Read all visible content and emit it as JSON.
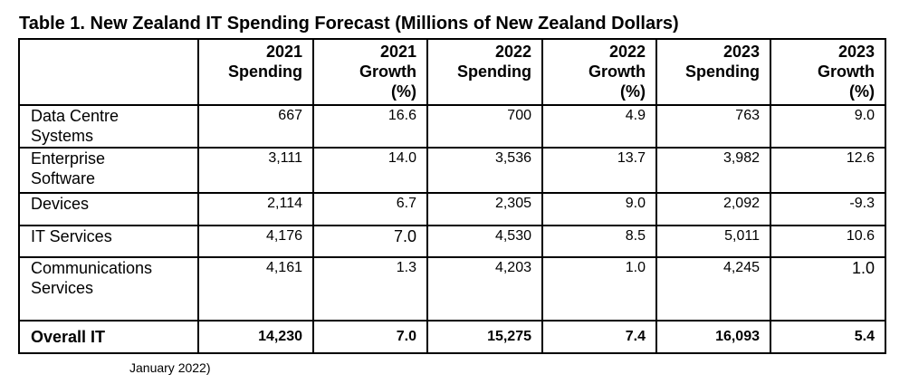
{
  "title": "Table 1. New Zealand IT Spending Forecast (Millions of New Zealand Dollars)",
  "headers": [
    {
      "l1": "2021",
      "l2": "Spending",
      "l3": ""
    },
    {
      "l1": "2021",
      "l2": "Growth",
      "l3": "(%)"
    },
    {
      "l1": "2022",
      "l2": "Spending",
      "l3": ""
    },
    {
      "l1": "2022",
      "l2": "Growth",
      "l3": "(%)"
    },
    {
      "l1": "2023",
      "l2": "Spending",
      "l3": ""
    },
    {
      "l1": "2023",
      "l2": "Growth",
      "l3": "(%)"
    }
  ],
  "rows": [
    {
      "label1": "Data Centre",
      "label2": "Systems",
      "values": [
        "667",
        "16.6",
        "700",
        "4.9",
        "763",
        "9.0"
      ]
    },
    {
      "label1": "Enterprise",
      "label2": "Software",
      "values": [
        "3,111",
        "14.0",
        "3,536",
        "13.7",
        "3,982",
        "12.6"
      ]
    },
    {
      "label1": "Devices",
      "label2": "",
      "values": [
        "2,114",
        "6.7",
        "2,305",
        "9.0",
        "2,092",
        "-9.3"
      ]
    },
    {
      "label1": "IT Services",
      "label2": "",
      "values": [
        "4,176",
        "7.0",
        "4,530",
        "8.5",
        "5,011",
        "10.6"
      ]
    },
    {
      "label1": "Communications",
      "label2": "Services",
      "values": [
        "4,161",
        "1.3",
        "4,203",
        "1.0",
        "4,245",
        "1.0"
      ]
    }
  ],
  "total": {
    "label": "Overall IT",
    "values": [
      "14,230",
      "7.0",
      "15,275",
      "7.4",
      "16,093",
      "5.4"
    ]
  },
  "source_fragment": "January 2022)"
}
